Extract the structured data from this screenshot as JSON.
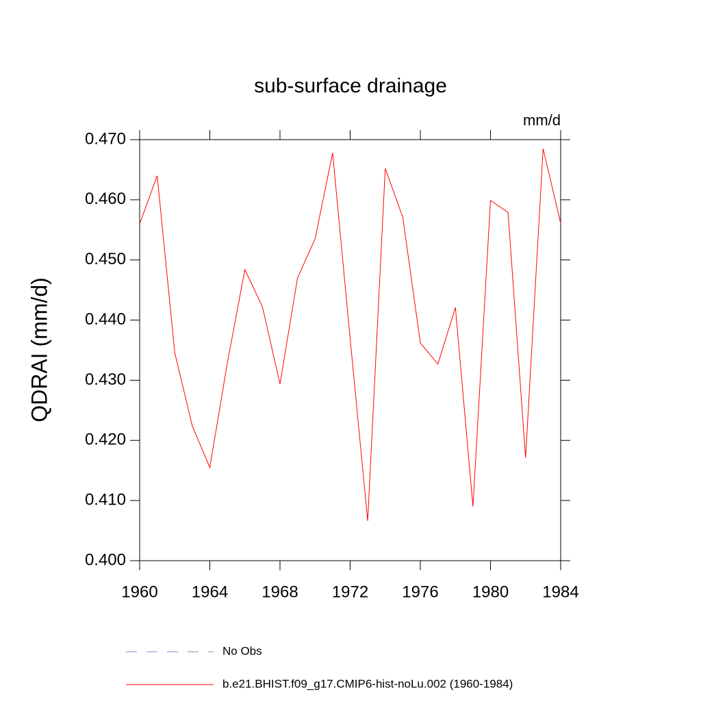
{
  "chart_data": {
    "type": "line",
    "title": "sub-surface drainage",
    "units": "mm/d",
    "y_label": "QDRAI  (mm/d)",
    "x": [
      1960,
      1961,
      1962,
      1963,
      1964,
      1965,
      1966,
      1967,
      1968,
      1969,
      1970,
      1971,
      1972,
      1973,
      1974,
      1975,
      1976,
      1977,
      1978,
      1979,
      1980,
      1981,
      1982,
      1983,
      1984
    ],
    "series": [
      {
        "name": "b.e21.BHIST.f09_g17.CMIP6-hist-noLu.002 (1960-1984)",
        "color": "#ff0000",
        "values": [
          0.456,
          0.464,
          0.4346,
          0.4224,
          0.4155,
          0.4329,
          0.4484,
          0.4422,
          0.4294,
          0.447,
          0.4535,
          0.4678,
          0.4369,
          0.4066,
          0.4652,
          0.4571,
          0.4362,
          0.4327,
          0.4421,
          0.409,
          0.4599,
          0.4579,
          0.4171,
          0.4685,
          0.4561
        ]
      }
    ],
    "extra_legend": [
      {
        "name": "No Obs",
        "color": "#8080c0",
        "style": "dashed"
      }
    ],
    "xlim": [
      1960,
      1984
    ],
    "xticks": [
      1960,
      1964,
      1968,
      1972,
      1976,
      1980,
      1984
    ],
    "ylim": [
      0.4,
      0.47
    ],
    "yticks": [
      {
        "value": 0.4,
        "label": "0.400"
      },
      {
        "value": 0.41,
        "label": "0.410"
      },
      {
        "value": 0.42,
        "label": "0.420"
      },
      {
        "value": 0.43,
        "label": "0.430"
      },
      {
        "value": 0.44,
        "label": "0.440"
      },
      {
        "value": 0.45,
        "label": "0.450"
      },
      {
        "value": 0.46,
        "label": "0.460"
      },
      {
        "value": 0.47,
        "label": "0.470"
      }
    ],
    "grid": false
  }
}
